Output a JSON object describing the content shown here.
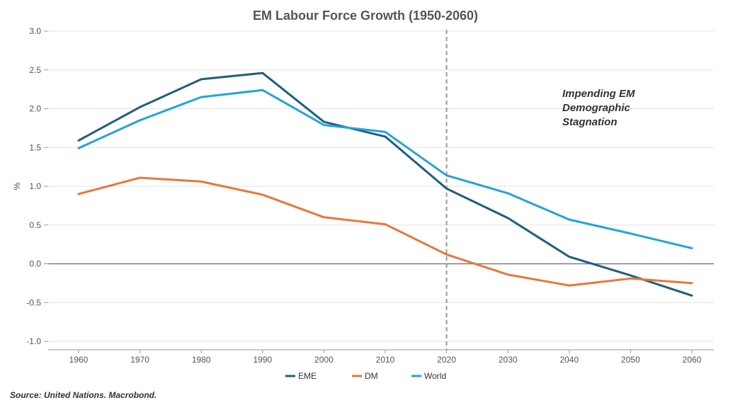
{
  "chart_data": {
    "type": "line",
    "title": "EM Labour Force Growth (1950-2060)",
    "xlabel": "",
    "ylabel": "%",
    "x": [
      1960,
      1970,
      1980,
      1990,
      2000,
      2010,
      2020,
      2030,
      2040,
      2050,
      2060
    ],
    "x_tick_labels": [
      "1960",
      "1970",
      "1980",
      "1990",
      "2000",
      "2010",
      "2020",
      "2030",
      "2040",
      "2050",
      "2060"
    ],
    "ylim": [
      -1.0,
      3.0
    ],
    "y_tick_labels": [
      "-1.0",
      "-0.5",
      "0.0",
      "0.5",
      "1.0",
      "1.5",
      "2.0",
      "2.5",
      "3.0"
    ],
    "y_ticks": [
      -1.0,
      -0.5,
      0.0,
      0.5,
      1.0,
      1.5,
      2.0,
      2.5,
      3.0
    ],
    "grid": true,
    "series": [
      {
        "name": "EME",
        "color": "#1f5e7e",
        "values": [
          1.59,
          2.02,
          2.38,
          2.46,
          1.83,
          1.64,
          0.97,
          0.59,
          0.09,
          -0.15,
          -0.41
        ]
      },
      {
        "name": "DM",
        "color": "#e8773a",
        "values": [
          0.9,
          1.11,
          1.06,
          0.89,
          0.6,
          0.51,
          0.12,
          -0.14,
          -0.28,
          -0.19,
          -0.25
        ]
      },
      {
        "name": "World",
        "color": "#22a4d8",
        "values": [
          1.49,
          1.85,
          2.15,
          2.24,
          1.79,
          1.7,
          1.14,
          0.91,
          0.57,
          0.39,
          0.2
        ]
      }
    ],
    "reference_line": {
      "x": 2020,
      "style": "dashed",
      "color": "#999999"
    },
    "annotation": {
      "lines": [
        "Impending EM",
        "Demographic",
        "Stagnation"
      ],
      "x": 2040,
      "y": 2.2
    },
    "legend_position": "bottom-center",
    "source": "Source: United Nations. Macrobond."
  }
}
